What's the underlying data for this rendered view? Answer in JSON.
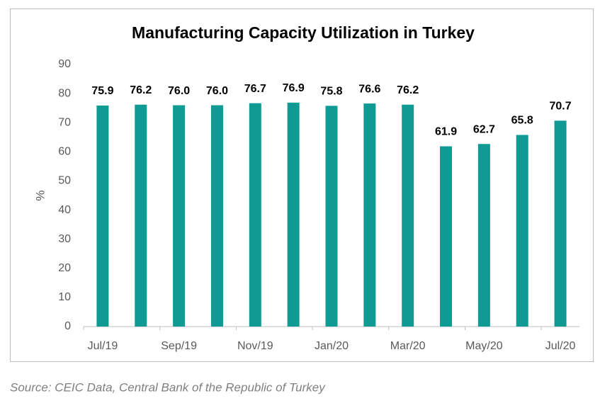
{
  "chart_data": {
    "type": "bar",
    "title": "Manufacturing Capacity Utilization in Turkey",
    "y_label": "%",
    "categories": [
      "Jul/19",
      null,
      "Sep/19",
      null,
      "Nov/19",
      null,
      "Jan/20",
      null,
      "Mar/20",
      null,
      "May/20",
      null,
      "Jul/20"
    ],
    "values": [
      75.9,
      76.2,
      76,
      76,
      76.7,
      76.9,
      75.8,
      76.6,
      76.2,
      61.9,
      62.7,
      65.8,
      70.7
    ],
    "value_labels": [
      "75.9",
      "76.2",
      "76.0",
      "76.0",
      "76.7",
      "76.9",
      "75.8",
      "76.6",
      "76.2",
      "61.9",
      "62.7",
      "65.8",
      "70.7"
    ],
    "color": "#0f9a93",
    "ylim": [
      0,
      90
    ],
    "yticks": [
      0,
      10,
      20,
      30,
      40,
      50,
      60,
      70,
      80,
      90
    ]
  },
  "source": "Source: CEIC Data, Central Bank of the Republic of Turkey"
}
